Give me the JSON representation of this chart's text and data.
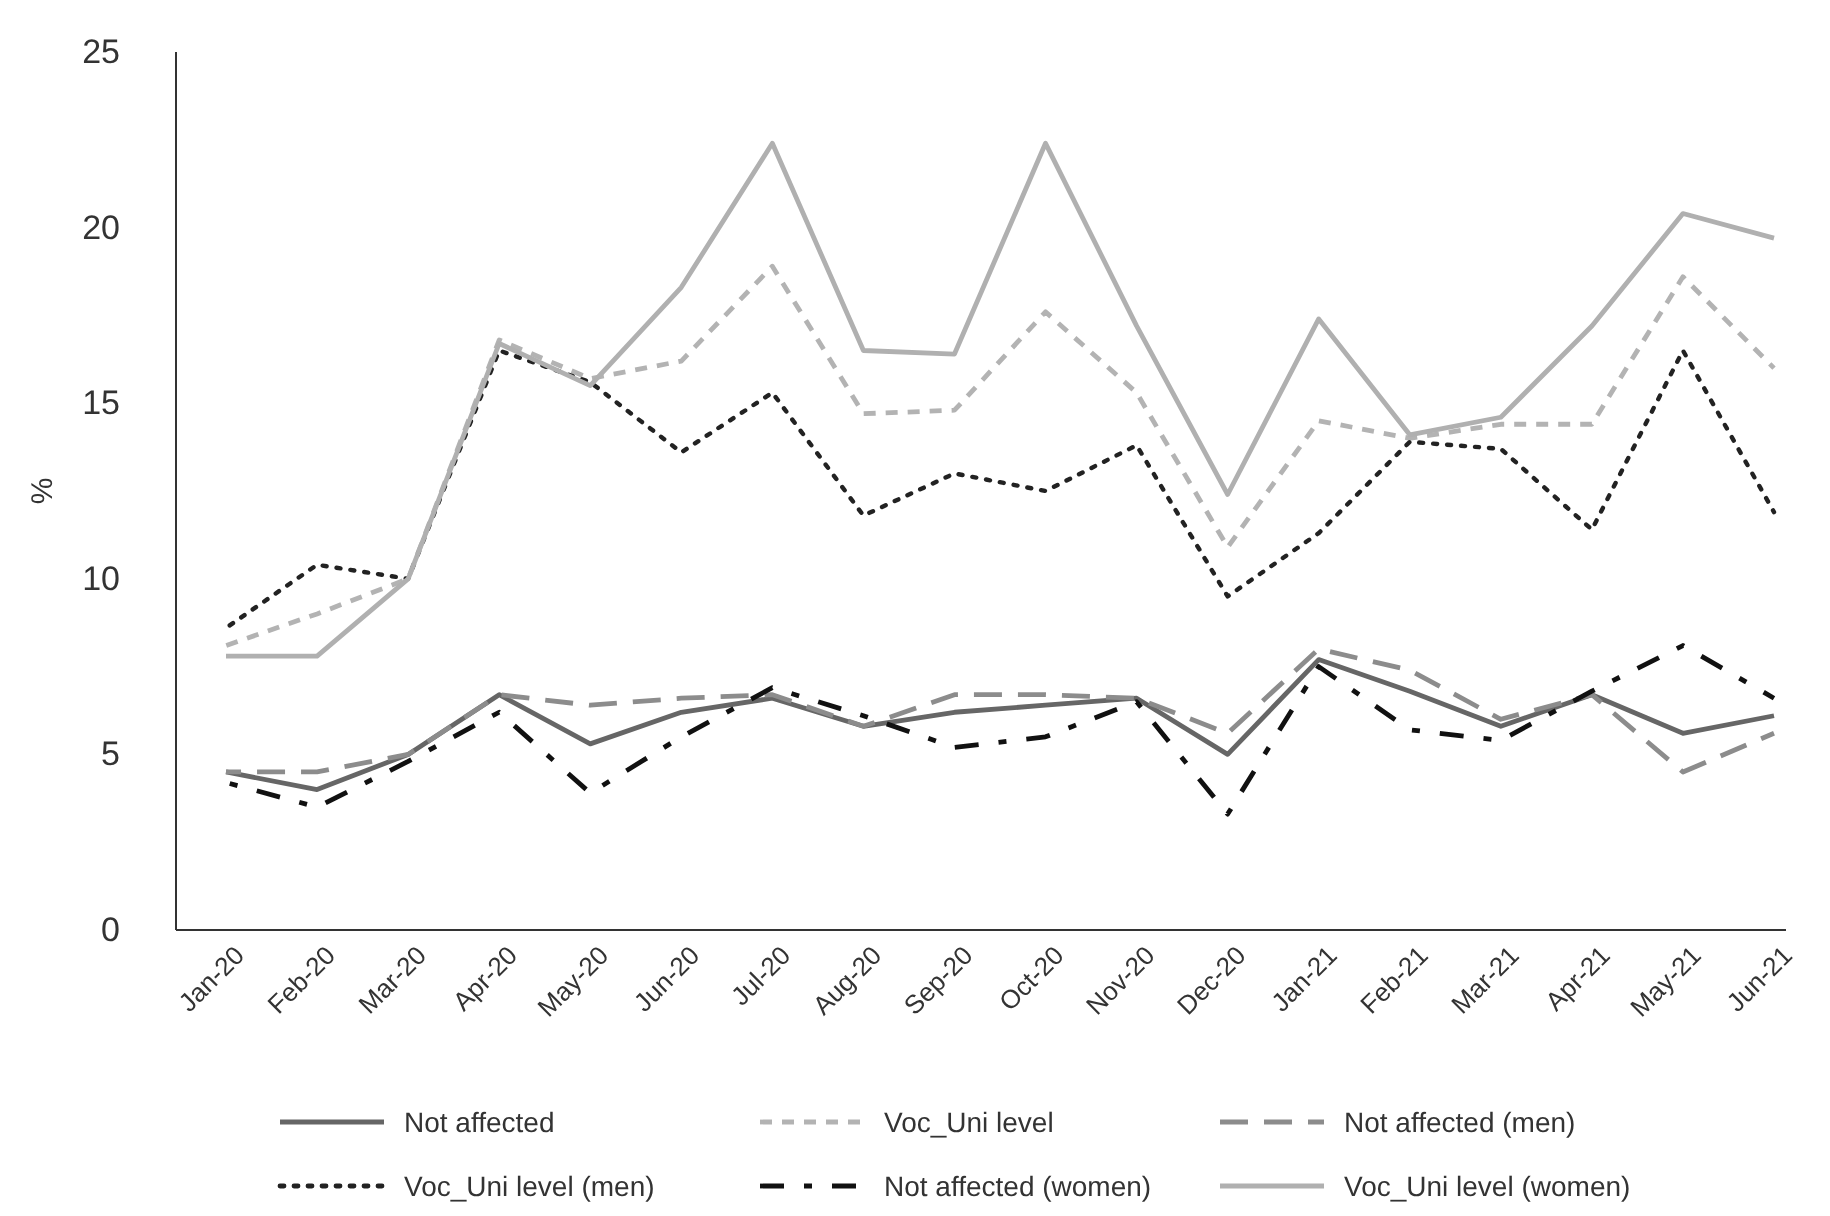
{
  "chart_data": {
    "type": "line",
    "ylabel": "%",
    "categories": [
      "Jan-20",
      "Feb-20",
      "Mar-20",
      "Apr-20",
      "May-20",
      "Jun-20",
      "Jul-20",
      "Aug-20",
      "Sep-20",
      "Oct-20",
      "Nov-20",
      "Dec-20",
      "Jan-21",
      "Feb-21",
      "Mar-21",
      "Apr-21",
      "May-21",
      "Jun-21"
    ],
    "ylim": [
      0,
      25
    ],
    "yticks": [
      0,
      5,
      10,
      15,
      20,
      25
    ],
    "grid": false,
    "legend": "bottom",
    "marker": "none",
    "series": [
      {
        "name": "Not affected",
        "color": "#666666",
        "line_style": "solid",
        "values": [
          4.5,
          4.0,
          5.0,
          6.7,
          5.3,
          6.2,
          6.6,
          5.8,
          6.2,
          6.4,
          6.6,
          5.0,
          7.7,
          6.8,
          5.8,
          6.7,
          5.6,
          6.1
        ]
      },
      {
        "name": "Voc_Uni level",
        "color": "#b3b3b3",
        "line_style": "dashed",
        "values": [
          8.1,
          9.0,
          10.0,
          16.8,
          15.7,
          16.2,
          18.9,
          14.7,
          14.8,
          17.6,
          15.3,
          10.9,
          14.5,
          14.0,
          14.4,
          14.4,
          18.6,
          16.0
        ]
      },
      {
        "name": "Not affected (men)",
        "color": "#8c8c8c",
        "line_style": "dashed",
        "values": [
          4.5,
          4.5,
          5.0,
          6.7,
          6.4,
          6.6,
          6.7,
          5.8,
          6.7,
          6.7,
          6.6,
          5.6,
          8.0,
          7.4,
          6.0,
          6.7,
          4.5,
          5.6
        ]
      },
      {
        "name": "Voc_Uni level (men)",
        "color": "#222222",
        "line_style": "dotted",
        "values": [
          8.6,
          10.4,
          10.0,
          16.5,
          15.6,
          13.6,
          15.3,
          11.8,
          13.0,
          12.5,
          13.8,
          9.5,
          11.3,
          13.9,
          13.7,
          11.4,
          16.5,
          11.9
        ]
      },
      {
        "name": "Not affected (women)",
        "color": "#111111",
        "line_style": "dashed",
        "values": [
          4.2,
          3.5,
          4.8,
          6.2,
          3.9,
          5.5,
          6.9,
          6.1,
          5.2,
          5.5,
          6.5,
          3.3,
          7.5,
          5.7,
          5.4,
          6.8,
          8.1,
          6.6
        ]
      },
      {
        "name": "Voc_Uni level (women)",
        "color": "#b0b0b0",
        "line_style": "solid",
        "values": [
          7.8,
          7.8,
          10.0,
          16.7,
          15.5,
          18.3,
          22.4,
          16.5,
          16.4,
          22.4,
          17.2,
          12.4,
          17.4,
          14.1,
          14.6,
          17.2,
          20.4,
          19.7
        ]
      }
    ]
  }
}
